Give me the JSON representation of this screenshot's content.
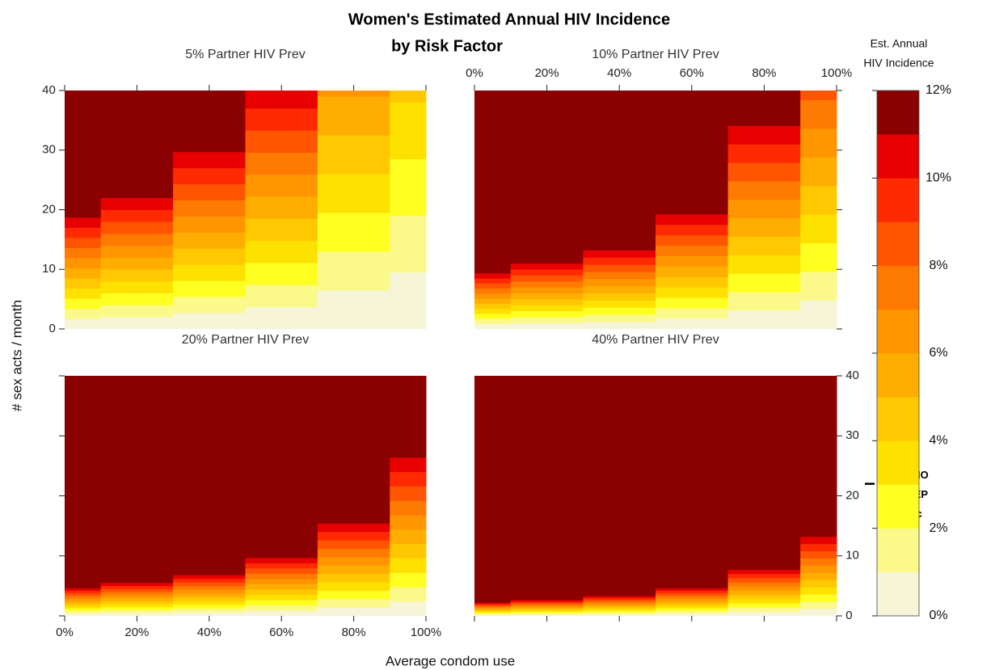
{
  "chart_data": {
    "type": "heatmap",
    "title": [
      "Women's Estimated Annual HIV Incidence",
      "by Risk Factor"
    ],
    "xlabel": "Average condom use",
    "ylabel": "# sex acts / month",
    "bins": [
      0,
      10,
      30,
      50,
      70,
      90,
      100
    ],
    "xlim": [
      0,
      100
    ],
    "xticks": [
      {
        "value": 0,
        "label": "0%"
      },
      {
        "value": 20,
        "label": "20%"
      },
      {
        "value": 40,
        "label": "40%"
      },
      {
        "value": 60,
        "label": "60%"
      },
      {
        "value": 80,
        "label": "80%"
      },
      {
        "value": 100,
        "label": "100%"
      }
    ],
    "ylim": [
      0,
      40
    ],
    "yticks": [
      0,
      10,
      20,
      30,
      40
    ],
    "legend_title": [
      "Est. Annual",
      "HIV Incidence"
    ],
    "color_levels": [
      0,
      1,
      2,
      3,
      4,
      5,
      6,
      7,
      8,
      9,
      10,
      11,
      12
    ],
    "colors": [
      "#f7f5d8",
      "#fbf98a",
      "#ffff22",
      "#ffe100",
      "#ffc800",
      "#ffae00",
      "#ff9600",
      "#ff7a00",
      "#ff5500",
      "#ff2a00",
      "#e80000",
      "#8b0000"
    ],
    "cticks": [
      {
        "value": 0,
        "label": "0%"
      },
      {
        "value": 2,
        "label": "2%"
      },
      {
        "value": 4,
        "label": "4%"
      },
      {
        "value": 6,
        "label": "6%"
      },
      {
        "value": 8,
        "label": "8%"
      },
      {
        "value": 10,
        "label": "10%"
      },
      {
        "value": 12,
        "label": "12%"
      }
    ],
    "annotation": {
      "text": [
        "WHO",
        "PrEP",
        "Rec"
      ],
      "y": 22
    },
    "panels": [
      {
        "title": "5% Partner HIV Prev",
        "thresholds": [
          [
            1.7,
            3.4,
            5.1,
            6.8,
            8.5,
            10.2,
            11.9,
            13.6,
            15.3,
            17,
            18.7
          ],
          [
            2,
            4,
            6,
            8,
            10,
            12,
            14,
            16,
            18,
            20,
            22
          ],
          [
            2.7,
            5.4,
            8.1,
            10.8,
            13.5,
            16.2,
            18.9,
            21.6,
            24.3,
            27,
            29.7
          ],
          [
            3.7,
            7.4,
            11.1,
            14.8,
            18.5,
            22.2,
            25.9,
            29.6,
            33.3,
            37
          ],
          [
            6.5,
            13,
            19.5,
            26,
            32.5,
            39
          ],
          [
            9.5,
            19,
            28.5,
            38
          ]
        ]
      },
      {
        "title": "10% Partner HIV Prev",
        "thresholds": [
          [
            0.85,
            1.7,
            2.55,
            3.4,
            4.25,
            5.1,
            5.95,
            6.8,
            7.65,
            8.5,
            9.35
          ],
          [
            1,
            2,
            3,
            4,
            5,
            6,
            7,
            8,
            9,
            10,
            11
          ],
          [
            1.2,
            2.4,
            3.6,
            4.8,
            6,
            7.2,
            8.4,
            9.6,
            10.8,
            12,
            13.2
          ],
          [
            1.75,
            3.5,
            5.25,
            7,
            8.75,
            10.5,
            12.25,
            14,
            15.75,
            17.5,
            19.25
          ],
          [
            3.1,
            6.2,
            9.3,
            12.4,
            15.5,
            18.6,
            21.7,
            24.8,
            27.9,
            31,
            34.1
          ],
          [
            4.8,
            9.6,
            14.4,
            19.2,
            24,
            28.8,
            33.6,
            38.4
          ]
        ]
      },
      {
        "title": "20% Partner HIV Prev",
        "thresholds": [
          [
            0.42,
            0.84,
            1.26,
            1.68,
            2.1,
            2.52,
            2.94,
            3.36,
            3.78,
            4.2,
            4.62
          ],
          [
            0.5,
            1,
            1.5,
            2,
            2.5,
            3,
            3.5,
            4,
            4.5,
            5,
            5.5
          ],
          [
            0.62,
            1.24,
            1.86,
            2.48,
            3.1,
            3.72,
            4.34,
            4.96,
            5.58,
            6.2,
            6.82
          ],
          [
            0.88,
            1.76,
            2.64,
            3.52,
            4.4,
            5.28,
            6.16,
            7.04,
            7.92,
            8.8,
            9.68
          ],
          [
            1.4,
            2.8,
            4.2,
            5.6,
            7,
            8.4,
            9.8,
            11.2,
            12.6,
            14,
            15.4
          ],
          [
            2.4,
            4.8,
            7.2,
            9.6,
            12,
            14.4,
            16.8,
            19.2,
            21.6,
            24,
            26.4
          ]
        ]
      },
      {
        "title": "40% Partner HIV Prev",
        "thresholds": [
          [
            0.2,
            0.4,
            0.6,
            0.8,
            1,
            1.2,
            1.4,
            1.6,
            1.8,
            2,
            2.2
          ],
          [
            0.24,
            0.48,
            0.72,
            0.96,
            1.2,
            1.44,
            1.68,
            1.92,
            2.16,
            2.4,
            2.64
          ],
          [
            0.3,
            0.6,
            0.9,
            1.2,
            1.5,
            1.8,
            2.1,
            2.4,
            2.7,
            3,
            3.3
          ],
          [
            0.42,
            0.84,
            1.26,
            1.68,
            2.1,
            2.52,
            2.94,
            3.36,
            3.78,
            4.2,
            4.62
          ],
          [
            0.7,
            1.4,
            2.1,
            2.8,
            3.5,
            4.2,
            4.9,
            5.6,
            6.3,
            7,
            7.7
          ],
          [
            1.2,
            2.4,
            3.6,
            4.8,
            6,
            7.2,
            8.4,
            9.6,
            10.8,
            12,
            13.2
          ]
        ]
      }
    ]
  }
}
